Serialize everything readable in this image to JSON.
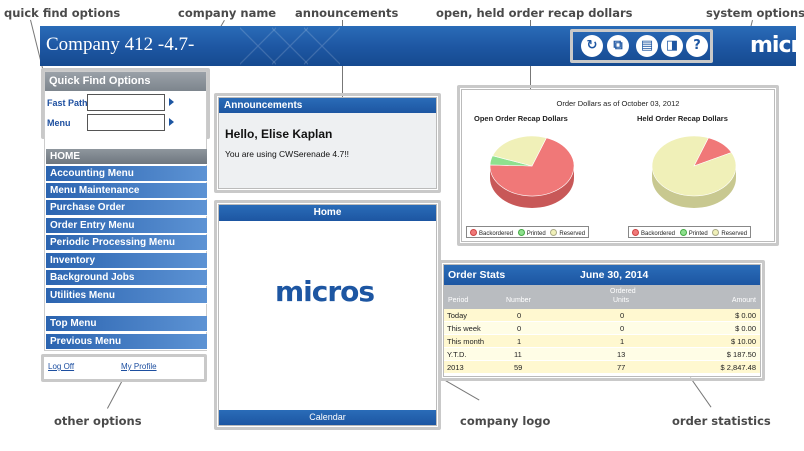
{
  "callouts": {
    "quick_find_options": "quick find options",
    "company_name": "company name",
    "announcements": "announcements",
    "order_recap": "open, held order recap dollars",
    "system_options": "system options",
    "other_options": "other options",
    "company_logo": "company logo",
    "order_statistics": "order statistics"
  },
  "header": {
    "company_name": "Company 412 -4.7-",
    "brand": "micros",
    "system_icons": [
      "refresh-icon",
      "copy-icon",
      "document-icon",
      "exit-icon",
      "help-icon"
    ],
    "help_glyph": "?"
  },
  "quick_find": {
    "title": "Quick Find Options",
    "fast_path_label": "Fast Path",
    "fast_path_value": "",
    "menu_label": "Menu",
    "menu_value": ""
  },
  "nav": {
    "items": [
      "HOME",
      "Accounting Menu",
      "Menu Maintenance",
      "Purchase Order",
      "Order Entry Menu",
      "Periodic Processing Menu",
      "Inventory",
      "Background Jobs",
      "Utilities Menu"
    ],
    "top_menu": "Top Menu",
    "previous_menu": "Previous Menu"
  },
  "other_options": {
    "log_off": "Log Off",
    "my_profile": "My Profile"
  },
  "announcements": {
    "title": "Announcements",
    "greeting": "Hello, Elise Kaplan",
    "version_text": "You are using CWSerenade 4.7!!"
  },
  "home_panel": {
    "title": "Home",
    "logo": "micros",
    "footer": "Calendar"
  },
  "order_dollars": {
    "title": "Order Dollars as of October 03, 2012",
    "open_title": "Open Order Recap Dollars",
    "held_title": "Held Order Recap Dollars",
    "legend": [
      "Backordered",
      "Printed",
      "Reserved"
    ],
    "colors": {
      "backordered": "#f07878",
      "printed": "#8ee08e",
      "reserved": "#f0f0b8"
    }
  },
  "chart_data": [
    {
      "type": "pie",
      "title": "Open Order Recap Dollars",
      "categories": [
        "Backordered",
        "Printed",
        "Reserved"
      ],
      "values": [
        70,
        5,
        25
      ]
    },
    {
      "type": "pie",
      "title": "Held Order Recap Dollars",
      "categories": [
        "Backordered",
        "Printed",
        "Reserved"
      ],
      "values": [
        12,
        0,
        88
      ]
    }
  ],
  "order_stats": {
    "title": "Order Stats",
    "date": "June 30, 2014",
    "columns": {
      "period": "Period",
      "number": "Number",
      "ordered_top": "Ordered",
      "ordered_bottom": "Units",
      "amount": "Amount"
    },
    "rows": [
      {
        "period": "Today",
        "number": "0",
        "units": "0",
        "amount": "$ 0.00"
      },
      {
        "period": "This week",
        "number": "0",
        "units": "0",
        "amount": "$ 0.00"
      },
      {
        "period": "This month",
        "number": "1",
        "units": "1",
        "amount": "$ 10.00"
      },
      {
        "period": "Y.T.D.",
        "number": "11",
        "units": "13",
        "amount": "$ 187.50"
      },
      {
        "period": "2013",
        "number": "59",
        "units": "77",
        "amount": "$ 2,847.48"
      }
    ]
  }
}
